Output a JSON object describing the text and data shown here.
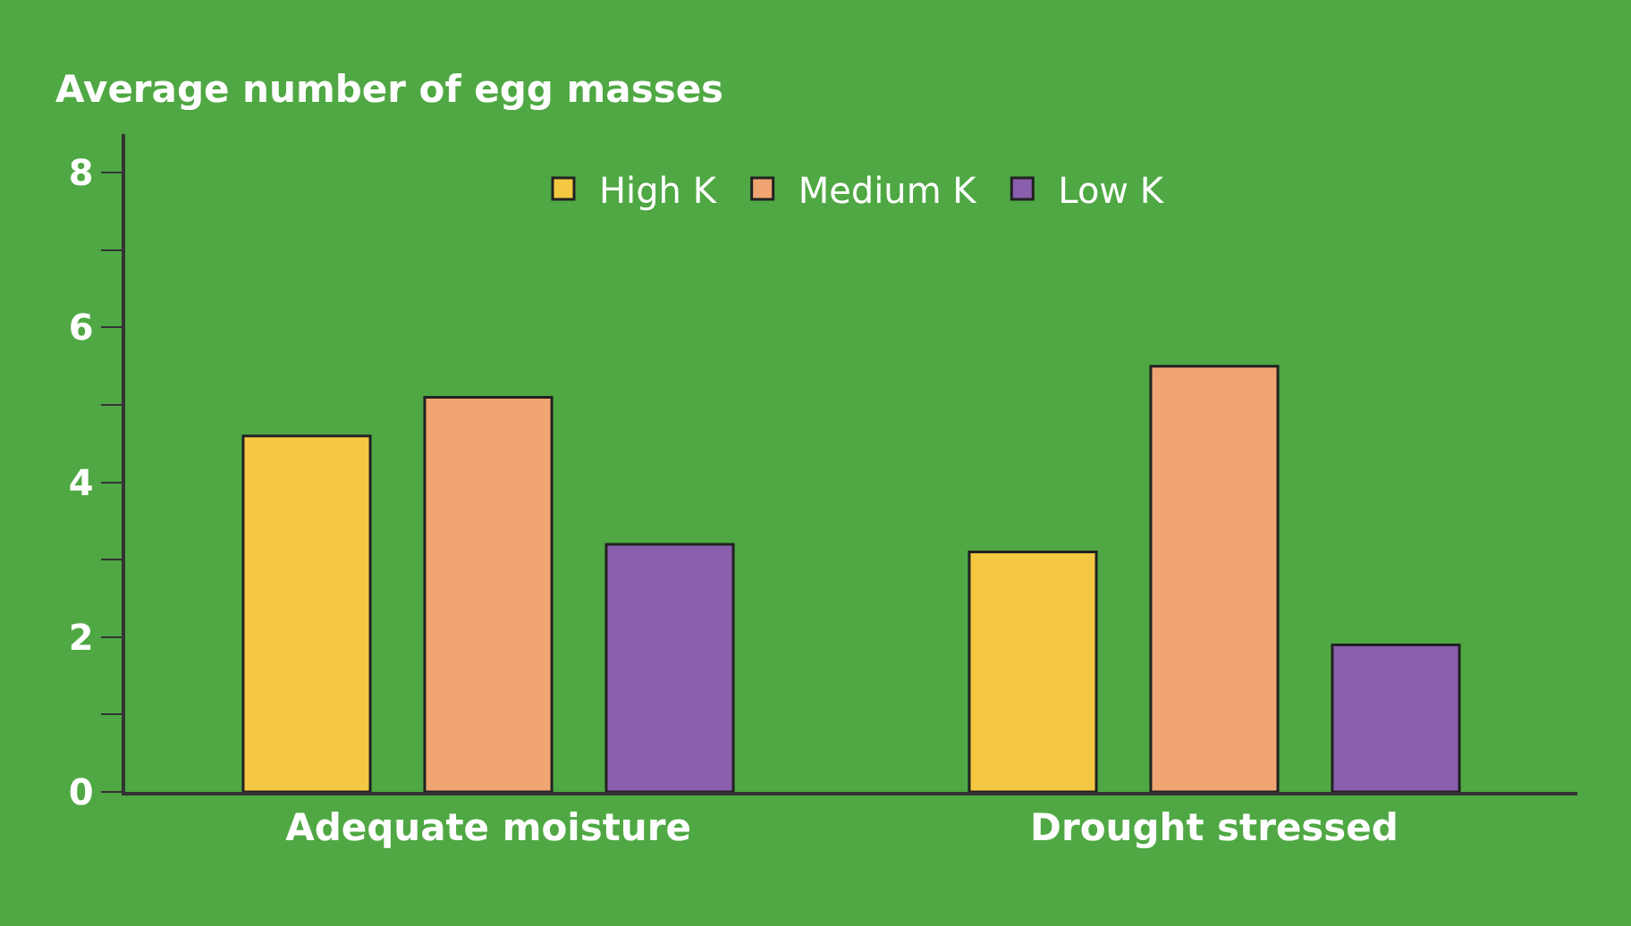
{
  "chart_data": {
    "type": "bar",
    "ylabel": "Average number of egg masses",
    "categories": [
      "Adequate moisture",
      "Drought stressed"
    ],
    "series": [
      {
        "name": "High K",
        "color": "#f4c842",
        "values": [
          4.6,
          3.1
        ]
      },
      {
        "name": "Medium K",
        "color": "#f0a572",
        "values": [
          5.1,
          5.5
        ]
      },
      {
        "name": "Low K",
        "color": "#8a5fae",
        "values": [
          3.2,
          1.9
        ]
      }
    ],
    "ylim": [
      0,
      8.5
    ],
    "yticks": [
      0,
      {
        "value": 1,
        "label": null
      },
      2,
      {
        "value": 3,
        "label": null
      },
      4,
      {
        "value": 5,
        "label": null
      },
      6,
      {
        "value": 7,
        "label": null
      },
      8
    ],
    "grid": false,
    "legend": "top"
  }
}
